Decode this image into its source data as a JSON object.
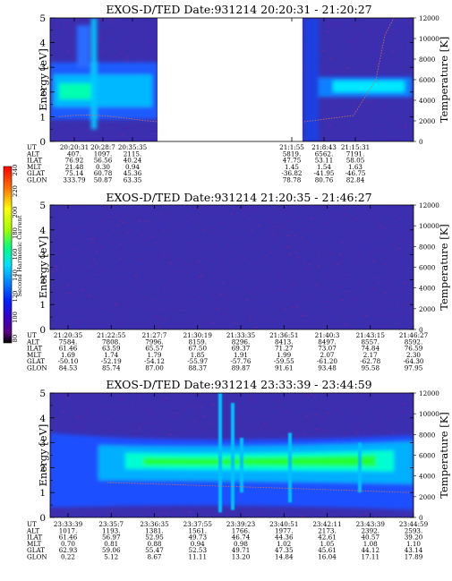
{
  "colors": {
    "background_plasma": "#3b2fb0",
    "bar_colors": [
      "#000000",
      "#5a0090",
      "#3a00c8",
      "#0030ff",
      "#0090ff",
      "#00e0ff",
      "#00ffa0",
      "#20ff20",
      "#b0ff00",
      "#ffff00",
      "#ffb000",
      "#ff5000",
      "#ff0000"
    ]
  },
  "colorbar": {
    "label": "Second Harmonic Current",
    "ticks": [
      "240",
      "220",
      "200",
      "180",
      "160",
      "140",
      "120",
      "100",
      "80"
    ]
  },
  "chart_data": [
    {
      "type": "heatmap",
      "title": "EXOS-D/TED   Date:931214  20:20:31 - 21:20:27",
      "ylabel": "Energy [eV]",
      "y2label": "Temperature [K]",
      "ylim": [
        0,
        5
      ],
      "y_ticks": [
        "0",
        "1",
        "2",
        "3",
        "4",
        "5"
      ],
      "y2lim": [
        0,
        12000
      ],
      "y2_ticks": [
        "0",
        "2000",
        "4000",
        "6000",
        "8000",
        "10000",
        "12000"
      ],
      "gap": true,
      "peak_energy_eV": 2.2,
      "orbit_table": {
        "row_labels": [
          "UT",
          "ALT",
          "ILAT",
          "MLT",
          "GLAT",
          "GLON"
        ],
        "columns": [
          [
            "20:20:31",
            "407.",
            "76.92",
            "21.48",
            "75.14",
            "333.79"
          ],
          [
            "20:28:7",
            "1097.",
            "56.56",
            "0.30",
            "60.78",
            "50.87"
          ],
          [
            "20:35:35",
            "2115.",
            "40.24",
            "0.94",
            "45.36",
            "63.35"
          ],
          [
            "21:1:55",
            "5819.",
            "47.75",
            "1.45",
            "-36.82",
            "78.78"
          ],
          [
            "21:8:43",
            "6562.",
            "53.11",
            "1.54",
            "-41.95",
            "80.76"
          ],
          [
            "21:15:31",
            "7191.",
            "58.05",
            "1.63",
            "-46.75",
            "82.84"
          ]
        ]
      }
    },
    {
      "type": "heatmap",
      "title": "EXOS-D/TED   Date:931214  21:20:35 - 21:46:27",
      "ylabel": "Energy [eV]",
      "y2label": "Temperature [K]",
      "ylim": [
        0,
        5
      ],
      "y_ticks": [
        "0",
        "1",
        "2",
        "3",
        "4",
        "5"
      ],
      "y2lim": [
        0,
        12000
      ],
      "y2_ticks": [
        "0",
        "2000",
        "4000",
        "6000",
        "8000",
        "10000",
        "12000"
      ],
      "gap": false,
      "orbit_table": {
        "row_labels": [
          "UT",
          "ALT",
          "ILAT",
          "MLT",
          "GLAT",
          "GLON"
        ],
        "columns": [
          [
            "21:20:35",
            "7584.",
            "61.46",
            "1.69",
            "-50.10",
            "84.53"
          ],
          [
            "21:22:55",
            "7808.",
            "63.59",
            "1.74",
            "-52.19",
            "85.74"
          ],
          [
            "21:27:7",
            "7996.",
            "65.57",
            "1.79",
            "-54.12",
            "87.00"
          ],
          [
            "21:30:19",
            "8159.",
            "67.50",
            "1.85",
            "-55.97",
            "88.37"
          ],
          [
            "21:33:35",
            "8296.",
            "69.37",
            "1.91",
            "-57.76",
            "89.87"
          ],
          [
            "21:36:51",
            "8413.",
            "71.27",
            "1.99",
            "-59.55",
            "91.61"
          ],
          [
            "21:40:3",
            "8497.",
            "73.07",
            "2.07",
            "-61.20",
            "93.48"
          ],
          [
            "21:43:15",
            "8557.",
            "74.84",
            "2.17",
            "-62.78",
            "95.58"
          ],
          [
            "21:46:27",
            "8592.",
            "76.59",
            "2.30",
            "-64.30",
            "97.95"
          ]
        ]
      }
    },
    {
      "type": "heatmap",
      "title": "EXOS-D/TED   Date:931214  23:33:39 - 23:44:59",
      "ylabel": "Energy [eV]",
      "y2label": "Temperature [K]",
      "ylim": [
        0,
        5
      ],
      "y_ticks": [
        "0",
        "1",
        "2",
        "3",
        "4",
        "5"
      ],
      "y2lim": [
        0,
        12000
      ],
      "y2_ticks": [
        "0",
        "2000",
        "4000",
        "6000",
        "8000",
        "10000",
        "12000"
      ],
      "gap": false,
      "peak_energy_eV": 2.2,
      "orbit_table": {
        "row_labels": [
          "UT",
          "ALT",
          "ILAT",
          "MLT",
          "GLAT",
          "GLON"
        ],
        "columns": [
          [
            "23:33:39",
            "1017.",
            "61.46",
            "0.70",
            "62.93",
            "0.22"
          ],
          [
            "23:35:7",
            "1193.",
            "56.97",
            "0.81",
            "59.06",
            "5.12"
          ],
          [
            "23:36:35",
            "1381.",
            "52.95",
            "0.88",
            "55.47",
            "8.67"
          ],
          [
            "23:37:55",
            "1561.",
            "49.73",
            "0.94",
            "52.53",
            "11.11"
          ],
          [
            "23:39:23",
            "1766.",
            "46.74",
            "0.98",
            "49.71",
            "13.20"
          ],
          [
            "23:40:51",
            "1977.",
            "44.36",
            "1.02",
            "47.35",
            "14.84"
          ],
          [
            "23:42:11",
            "2173.",
            "42.61",
            "1.05",
            "45.61",
            "16.04"
          ],
          [
            "23:43:39",
            "2392.",
            "40.57",
            "1.08",
            "44.12",
            "17.11"
          ],
          [
            "23:44:59",
            "2593.",
            "39.20",
            "1.10",
            "43.14",
            "17.89"
          ]
        ]
      }
    }
  ]
}
